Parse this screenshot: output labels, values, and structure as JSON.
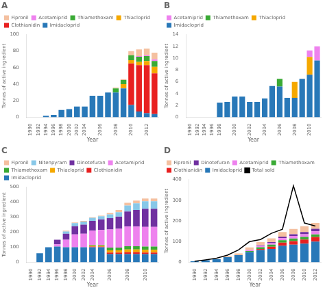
{
  "chart_data": [
    {
      "type": "bar",
      "title": "A",
      "xlabel": "Year",
      "ylabel": "Tonnes of active ingredient",
      "categories": [
        "1990",
        "1992",
        "1994",
        "1996",
        "1998",
        "2000",
        "2002",
        "2004",
        null,
        "2006",
        null,
        "2008",
        null,
        "2010",
        null,
        "2012",
        null
      ],
      "series": [
        {
          "name": "Imidacloprid",
          "color": "#2878b8",
          "values": [
            0,
            0,
            2,
            3,
            9,
            10,
            13,
            13,
            26,
            26,
            30,
            30,
            35,
            15,
            7,
            5,
            4
          ]
        },
        {
          "name": "Clothianidin",
          "color": "#e82020",
          "values": [
            0,
            0,
            0,
            0,
            0,
            0,
            0,
            0,
            0,
            0,
            0,
            0,
            0,
            50,
            56,
            58,
            49
          ]
        },
        {
          "name": "Thiacloprid",
          "color": "#f5a800",
          "values": [
            0,
            0,
            0,
            0,
            0,
            0,
            0,
            0,
            0,
            0,
            0,
            0,
            5,
            4,
            4,
            5,
            8
          ]
        },
        {
          "name": "Thiamethoxam",
          "color": "#3aaa35",
          "values": [
            0,
            0,
            0,
            0,
            0,
            0,
            0,
            0,
            0,
            0,
            0,
            5,
            5,
            6,
            6,
            6,
            7
          ]
        },
        {
          "name": "Acetamiprid",
          "color": "#ee82ee",
          "values": [
            0,
            0,
            0,
            0,
            0,
            0,
            0,
            0,
            0,
            0,
            0,
            0,
            0,
            0,
            1,
            1,
            2
          ]
        },
        {
          "name": "Fipronil",
          "color": "#f4c0a0",
          "values": [
            0,
            0,
            0,
            0,
            0,
            0,
            0,
            0,
            0,
            0,
            0,
            1,
            1,
            5,
            8,
            8,
            8
          ]
        }
      ],
      "ylim": [
        0,
        100
      ],
      "yticks": [
        0,
        20,
        40,
        60,
        80,
        100
      ],
      "stacked": true,
      "grid": false,
      "legend": "upper left"
    },
    {
      "type": "bar",
      "title": "B",
      "xlabel": "Year",
      "ylabel": "Tonnes of active ingredient",
      "categories": [
        "1990",
        "1992",
        "1994",
        "1996",
        "1998",
        null,
        "2000",
        null,
        "2002",
        null,
        "2004",
        null,
        "2006",
        null,
        "2008",
        null,
        "2010",
        null
      ],
      "series": [
        {
          "name": "Imidacloprid",
          "color": "#2878b8",
          "values": [
            0,
            0,
            0,
            0,
            2.5,
            2.6,
            3.5,
            3.5,
            2.6,
            2.6,
            3.2,
            5.3,
            5.2,
            3.3,
            3.3,
            6.5,
            7.2,
            9.6
          ]
        },
        {
          "name": "Thiacloprid",
          "color": "#f5a800",
          "values": [
            0,
            0,
            0,
            0,
            0,
            0,
            0,
            0,
            0,
            0,
            0,
            0,
            0,
            0,
            2.7,
            0,
            3.0,
            0
          ]
        },
        {
          "name": "Thiamethoxam",
          "color": "#3aaa35",
          "values": [
            0,
            0,
            0,
            0,
            0,
            0,
            0,
            0,
            0,
            0,
            0,
            0,
            1.3,
            0,
            0,
            0,
            0,
            0
          ]
        },
        {
          "name": "Acetamiprid",
          "color": "#ee82ee",
          "values": [
            0,
            0,
            0,
            0,
            0,
            0,
            0,
            0,
            0,
            0,
            0,
            0,
            0,
            0,
            0,
            0,
            1.1,
            2.4
          ]
        }
      ],
      "ylim": [
        0,
        14
      ],
      "yticks": [
        0,
        2,
        4,
        6,
        8,
        10,
        12,
        14
      ],
      "stacked": true,
      "grid": false,
      "legend": "upper left"
    },
    {
      "type": "bar",
      "title": "C",
      "xlabel": "Year",
      "ylabel": "Tonnes of active ingredient",
      "categories": [
        "1990",
        "1992",
        "1994",
        "1996",
        "1998",
        "2000",
        "2002",
        "2004",
        null,
        "2006",
        null,
        "2008",
        null,
        "2010",
        null
      ],
      "series": [
        {
          "name": "Imidacloprid",
          "color": "#2878b8",
          "values": [
            0,
            60,
            100,
            105,
            100,
            100,
            100,
            100,
            100,
            55,
            55,
            55,
            55,
            55,
            55
          ]
        },
        {
          "name": "Clothianidin",
          "color": "#e82020",
          "values": [
            0,
            0,
            0,
            0,
            0,
            0,
            0,
            5,
            5,
            10,
            10,
            12,
            12,
            10,
            10
          ]
        },
        {
          "name": "Thiacloprid",
          "color": "#f5a800",
          "values": [
            0,
            0,
            0,
            0,
            0,
            0,
            0,
            5,
            5,
            15,
            15,
            18,
            18,
            18,
            18
          ]
        },
        {
          "name": "Thiamethoxam",
          "color": "#3aaa35",
          "values": [
            0,
            0,
            0,
            0,
            0,
            0,
            0,
            5,
            5,
            18,
            18,
            22,
            22,
            22,
            22
          ]
        },
        {
          "name": "Acetamiprid",
          "color": "#ee82ee",
          "values": [
            0,
            0,
            0,
            15,
            50,
            85,
            90,
            95,
            100,
            120,
            125,
            130,
            130,
            130,
            130
          ]
        },
        {
          "name": "Dinotefuran",
          "color": "#7030a0",
          "values": [
            0,
            0,
            0,
            30,
            40,
            55,
            60,
            65,
            70,
            75,
            80,
            100,
            110,
            120,
            120
          ]
        },
        {
          "name": "Nitenpyram",
          "color": "#88c8e8",
          "values": [
            0,
            0,
            0,
            0,
            15,
            20,
            20,
            20,
            20,
            25,
            30,
            40,
            45,
            50,
            50
          ]
        },
        {
          "name": "Fipronil",
          "color": "#f4c0a0",
          "values": [
            0,
            0,
            0,
            0,
            5,
            5,
            5,
            5,
            5,
            10,
            15,
            18,
            18,
            18,
            18
          ]
        }
      ],
      "ylim": [
        0,
        500
      ],
      "yticks": [
        0,
        100,
        200,
        300,
        400,
        500
      ],
      "stacked": true,
      "grid": false,
      "legend": "upper left"
    },
    {
      "type": "bar",
      "title": "D",
      "xlabel": "Year",
      "ylabel": "Tonnes of active ingredient",
      "categories": [
        "1990",
        "1992",
        "1994",
        "1996",
        "1998",
        "2000",
        "2002",
        "2004",
        "2006",
        "2008",
        "2010",
        "2012"
      ],
      "series": [
        {
          "name": "Imidacloprid",
          "color": "#2878b8",
          "values": [
            5,
            10,
            15,
            25,
            35,
            50,
            60,
            65,
            80,
            85,
            90,
            100
          ]
        },
        {
          "name": "Clothianidin",
          "color": "#e82020",
          "values": [
            0,
            0,
            0,
            0,
            0,
            0,
            5,
            10,
            15,
            18,
            20,
            22
          ]
        },
        {
          "name": "Thiamethoxam",
          "color": "#3aaa35",
          "values": [
            0,
            0,
            0,
            0,
            0,
            5,
            8,
            10,
            12,
            12,
            13,
            13
          ]
        },
        {
          "name": "Acetamiprid",
          "color": "#ee82ee",
          "values": [
            0,
            0,
            0,
            0,
            0,
            5,
            7,
            8,
            10,
            12,
            13,
            15
          ]
        },
        {
          "name": "Dinotefuran",
          "color": "#7030a0",
          "values": [
            0,
            0,
            0,
            0,
            0,
            0,
            3,
            5,
            7,
            9,
            10,
            12
          ]
        },
        {
          "name": "Fipronil",
          "color": "#f4c0a0",
          "values": [
            0,
            0,
            0,
            5,
            8,
            12,
            15,
            18,
            22,
            25,
            28,
            28
          ]
        },
        {
          "name": "Total sold",
          "color": "#000000",
          "type": "line",
          "values": [
            5,
            12,
            20,
            35,
            60,
            100,
            110,
            140,
            160,
            370,
            190,
            175
          ]
        }
      ],
      "ylim": [
        0,
        400
      ],
      "yticks": [
        0,
        100,
        200,
        300,
        400
      ],
      "stacked": true,
      "grid": false,
      "legend": "upper left"
    }
  ]
}
